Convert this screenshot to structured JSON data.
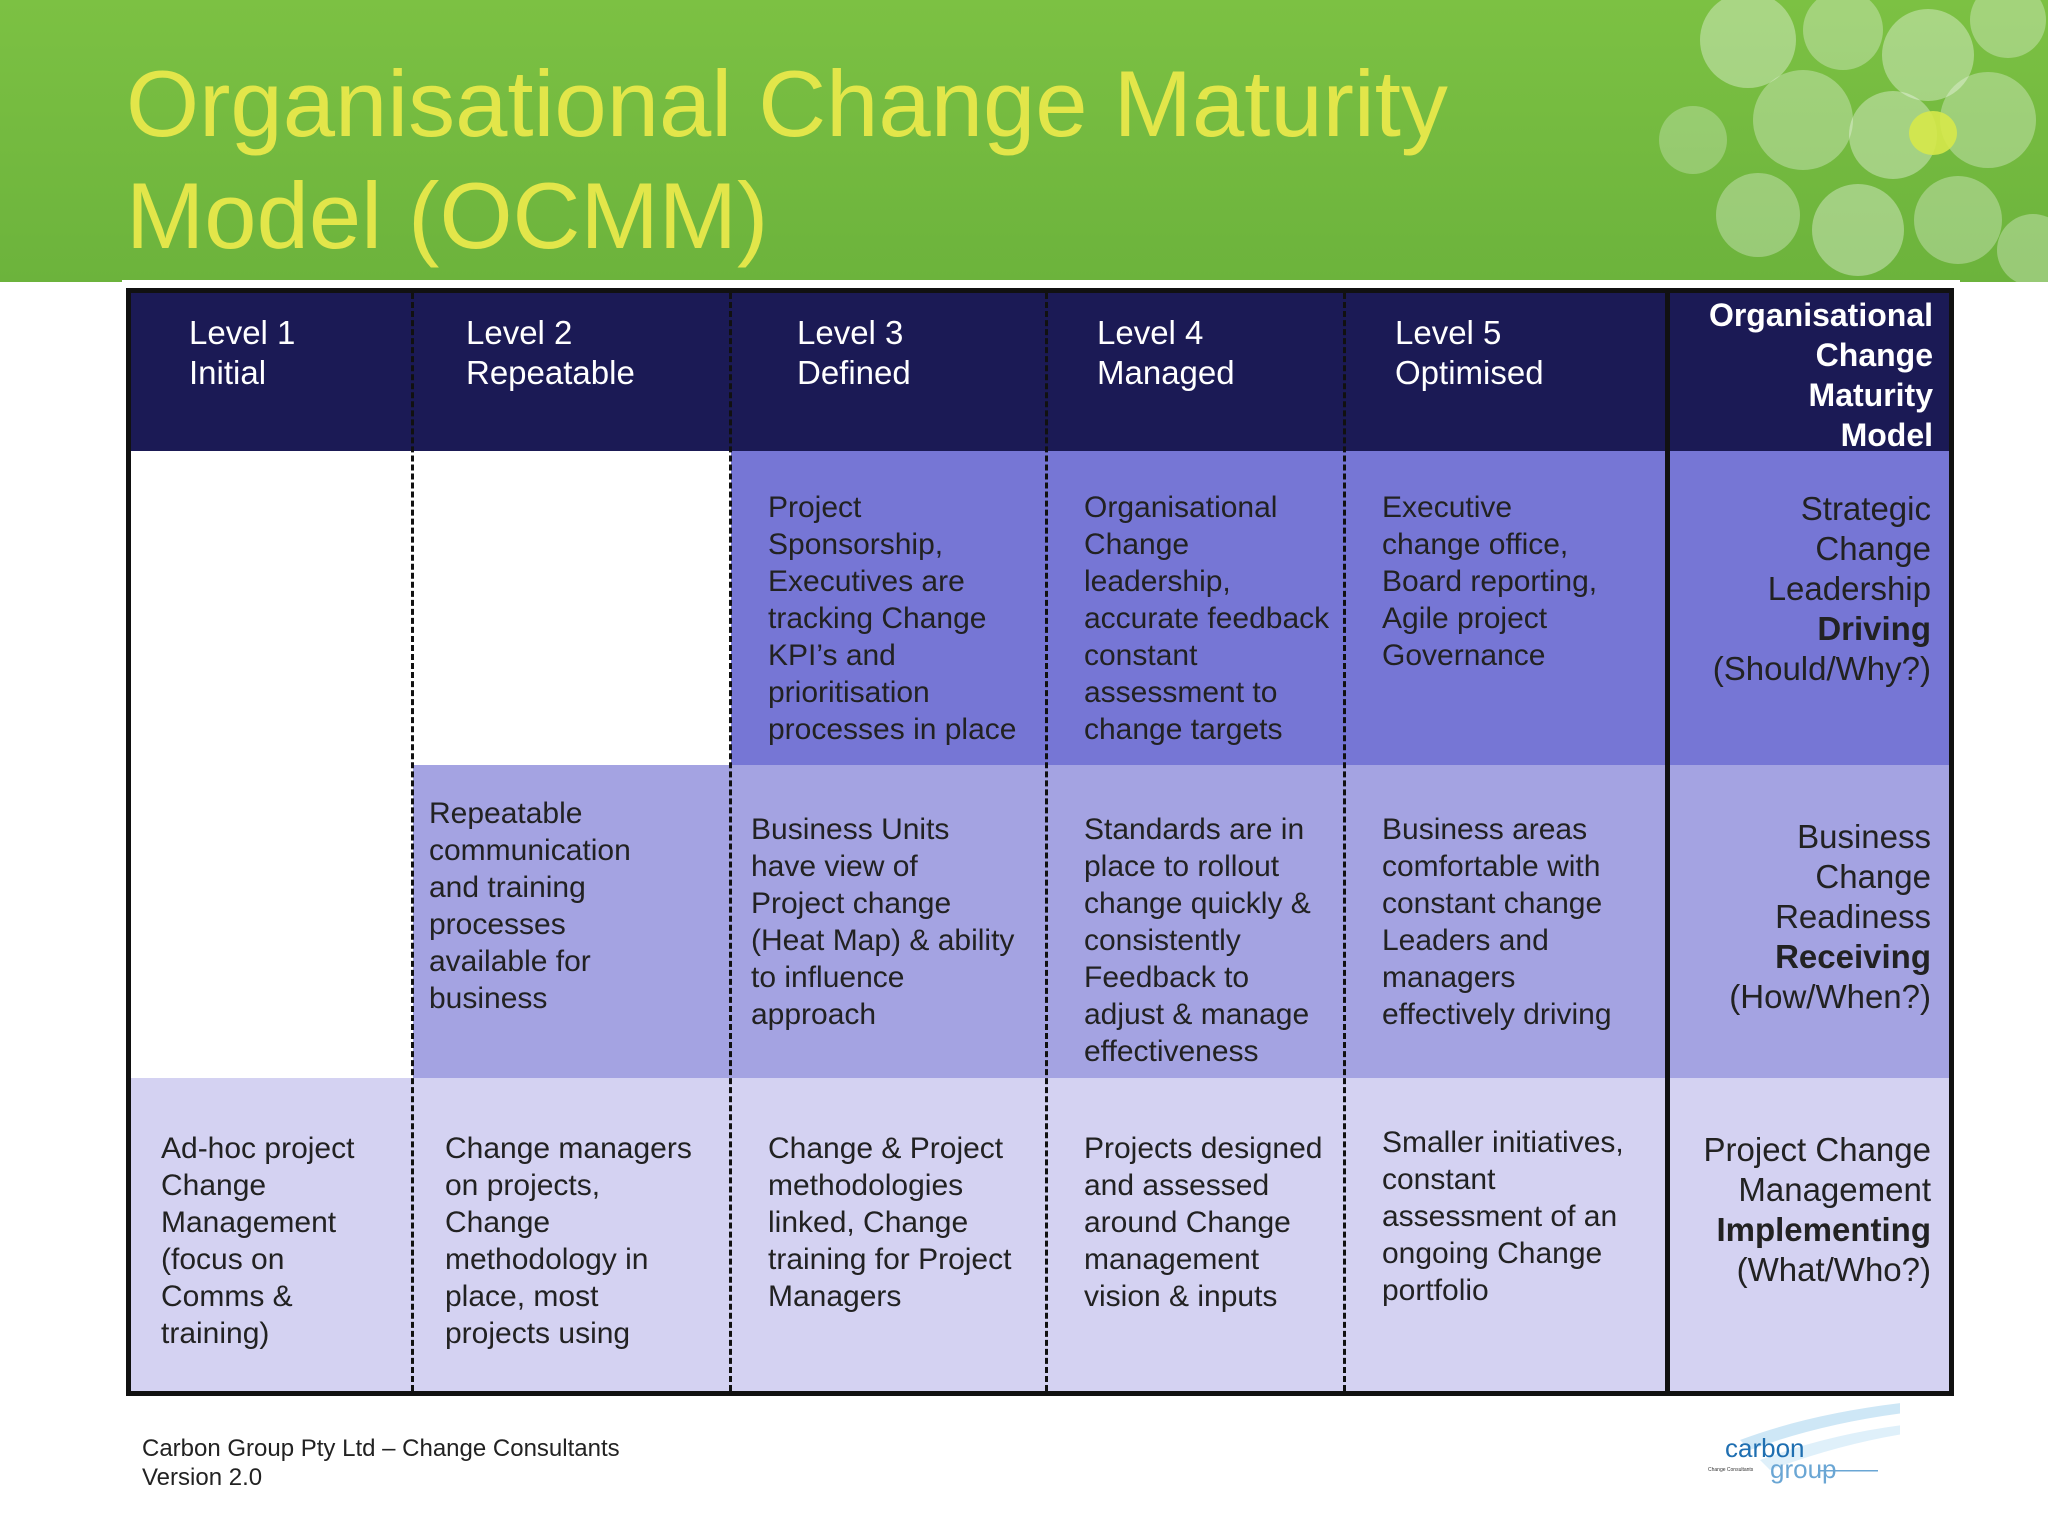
{
  "title": "Organisational Change Maturity\nModel (OCMM)",
  "colors": {
    "header_green": "#6cb33c",
    "title_yellow": "#e2e64a",
    "header_navy": "#1b1a55",
    "row1_purple": "#7676d5",
    "row2_purple": "#a4a3e2",
    "row3_purple": "#d4d2f2"
  },
  "levels": [
    {
      "label": "Level 1\nInitial"
    },
    {
      "label": "Level 2\nRepeatable"
    },
    {
      "label": "Level 3\nDefined"
    },
    {
      "label": "Level 4\nManaged"
    },
    {
      "label": "Level 5\nOptimised"
    }
  ],
  "model_header": "Organisational\nChange\nMaturity\nModel",
  "rows": [
    {
      "cells": [
        "",
        "",
        "Project\nSponsorship,\nExecutives are\ntracking Change\nKPI’s and\nprioritisation\nprocesses in place",
        "Organisational\nChange\nleadership,\naccurate feedback\nconstant\nassessment to\nchange targets",
        "Executive\nchange  office,\nBoard reporting,\nAgile  project\nGovernance"
      ],
      "model": {
        "pre": "Strategic\nChange\nLeadership",
        "bold": "Driving",
        "post": "(Should/Why?)"
      }
    },
    {
      "cells": [
        "",
        "Repeatable\ncommunication\nand training\nprocesses\navailable for\nbusiness",
        "Business Units\nhave view of\nProject change\n(Heat Map) & ability\nto influence\napproach",
        "Standards are in\nplace to rollout\nchange  quickly &\nconsistently\nFeedback to\nadjust & manage\neffectiveness",
        "Business areas\ncomfortable with\nconstant change\nLeaders and\nmanagers\neffectively driving"
      ],
      "model": {
        "pre": "Business\nChange\nReadiness",
        "bold": "Receiving",
        "post": "(How/When?)"
      }
    },
    {
      "cells": [
        "Ad-hoc project\nChange\nManagement\n(focus on\nComms &\ntraining)",
        "Change managers\non projects,\nChange\nmethodology in\nplace, most\nprojects using",
        "Change & Project\nmethodologies\nlinked, Change\ntraining  for Project\nManagers",
        "Projects designed\nand assessed\naround Change\nmanagement\nvision & inputs",
        "Smaller initiatives,\nconstant\nassessment  of an\nongoing Change\nportfolio"
      ],
      "model": {
        "pre": "Project Change\nManagement",
        "bold": "Implementing",
        "post": "(What/Who?)"
      }
    }
  ],
  "footer": "Carbon Group Pty Ltd – Change Consultants\nVersion 2.0",
  "logo": {
    "word1": "carbon",
    "word2": "group",
    "tagline": "Change Consultants"
  }
}
